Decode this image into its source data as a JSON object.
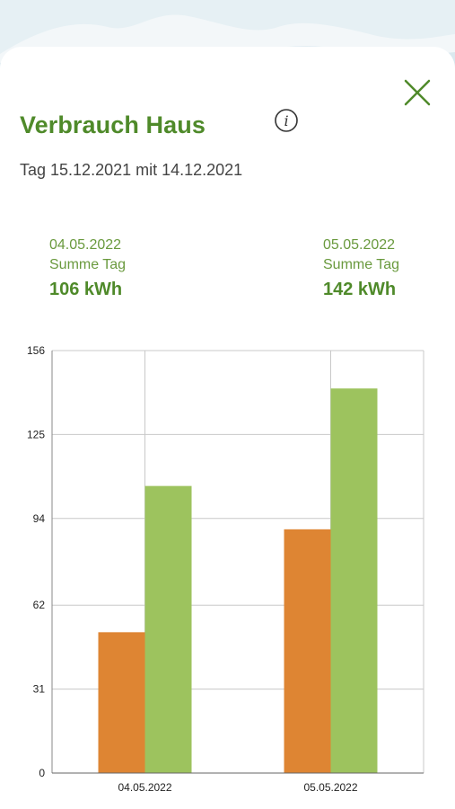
{
  "panel": {
    "title": "Verbrauch Haus",
    "subtitle": "Tag 15.12.2021 mit 14.12.2021",
    "close_icon": "close-icon",
    "info_icon": "info-icon"
  },
  "summaries": [
    {
      "date": "04.05.2022",
      "label": "Summe Tag",
      "value": "106 kWh"
    },
    {
      "date": "05.05.2022",
      "label": "Summe Tag",
      "value": "142 kWh"
    }
  ],
  "colors": {
    "accent_green": "#4f8a2a",
    "bar_orange": "#de8533",
    "bar_green": "#9dc35e"
  },
  "chart_data": {
    "type": "bar",
    "categories": [
      "04.05.2022",
      "05.05.2022"
    ],
    "series": [
      {
        "values": [
          52,
          90
        ],
        "color": "#de8533"
      },
      {
        "values": [
          106,
          142
        ],
        "color": "#9dc35e"
      }
    ],
    "yticks": [
      "0",
      "31",
      "62",
      "94",
      "125",
      "156"
    ],
    "ylim": [
      0,
      156
    ],
    "title": "",
    "xlabel": "",
    "ylabel": "",
    "grid": true,
    "legend": "none"
  }
}
